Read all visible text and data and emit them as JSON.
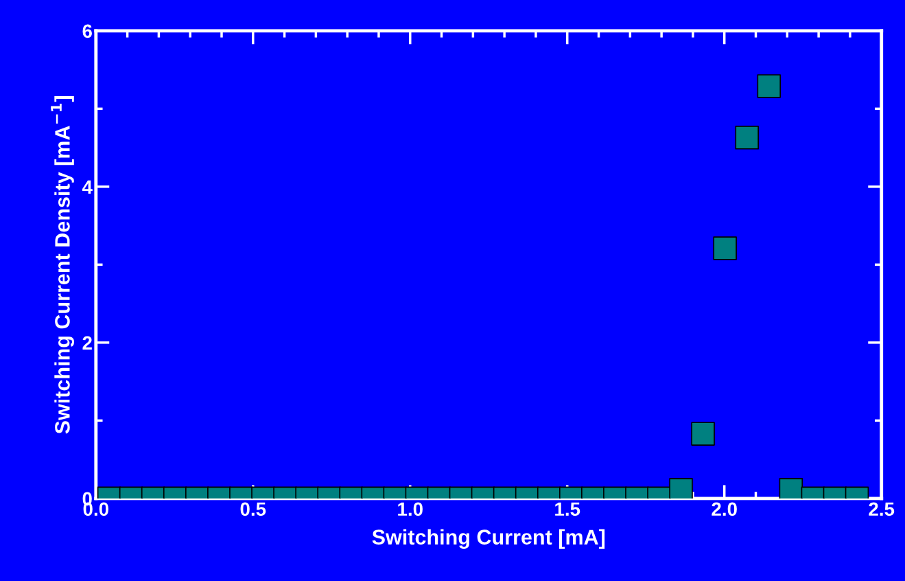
{
  "chart_data": {
    "type": "scatter",
    "xlabel": "Switching Current [mA]",
    "ylabel": "Switching Current Density [mA$^{−1}$]",
    "x": [
      0.042,
      0.112,
      0.182,
      0.252,
      0.322,
      0.392,
      0.462,
      0.532,
      0.602,
      0.672,
      0.742,
      0.812,
      0.882,
      0.952,
      1.022,
      1.092,
      1.162,
      1.232,
      1.302,
      1.372,
      1.442,
      1.512,
      1.582,
      1.652,
      1.722,
      1.792,
      1.862,
      1.932,
      2.002,
      2.072,
      2.142,
      2.212,
      2.282,
      2.352,
      2.422
    ],
    "series": [
      {
        "color": "#008080",
        "values": [
          0,
          0,
          0,
          0,
          0,
          0,
          0,
          0,
          0,
          0,
          0,
          0,
          0,
          0,
          0,
          0,
          0,
          0,
          0,
          0,
          0,
          0,
          0,
          0,
          0,
          0,
          0.11,
          0.83,
          3.21,
          4.63,
          5.29,
          0.11,
          0,
          0,
          0
        ]
      }
    ],
    "marker": "square",
    "xlim": [
      0,
      2.5
    ],
    "ylim": [
      0,
      6
    ],
    "xticks": [
      {
        "value": 0,
        "label": "0.0"
      },
      0.5,
      {
        "value": 1,
        "label": "1.0"
      },
      1.5,
      {
        "value": 2,
        "label": "2.0"
      },
      2.5
    ],
    "yticks": [
      0,
      2,
      4,
      6
    ],
    "grid": false,
    "legend": false
  }
}
